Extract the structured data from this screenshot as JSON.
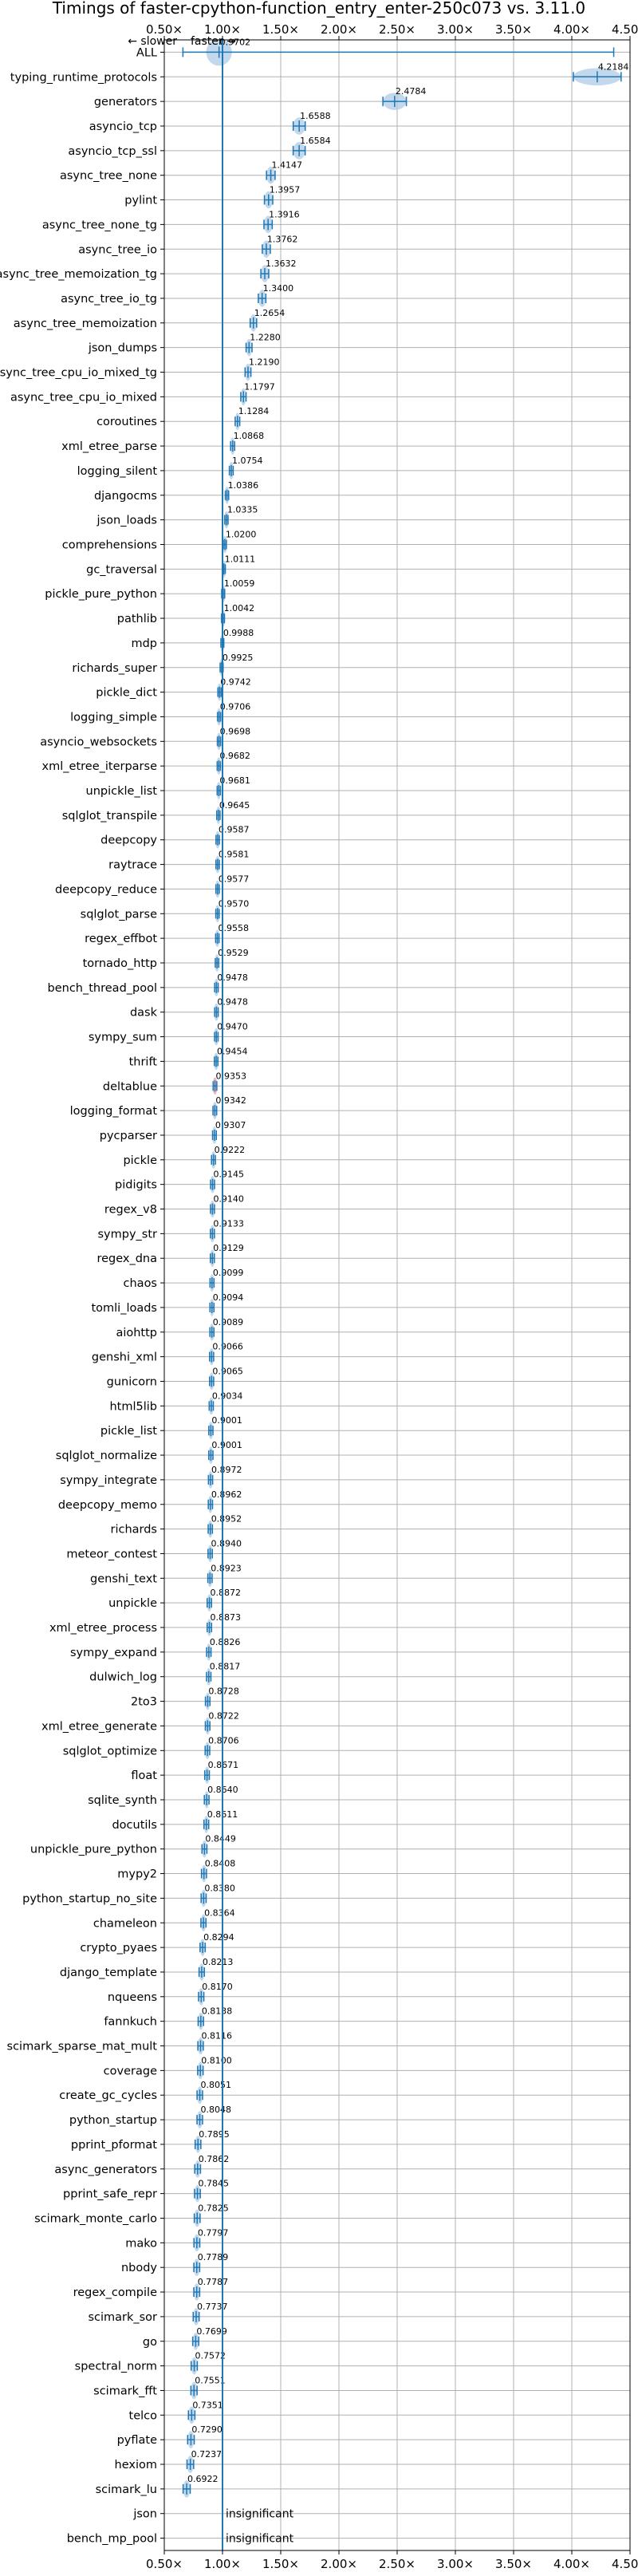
{
  "chart_data": {
    "type": "violin",
    "title": "Timings of faster-cpython-function_entry_enter-250c073 vs. 3.11.0",
    "top_labels": {
      "slower": "← slower",
      "faster": "faster →"
    },
    "xlim": [
      0.5,
      4.5
    ],
    "xticks": [
      0.5,
      1.0,
      1.5,
      2.0,
      2.5,
      3.0,
      3.5,
      4.0,
      4.5
    ],
    "xtick_labels": [
      "0.50×",
      "1.00×",
      "1.50×",
      "2.00×",
      "2.50×",
      "3.00×",
      "3.50×",
      "4.00×",
      "4.50×"
    ],
    "reference_line": 1.0,
    "grid": true,
    "colors": {
      "violin": "#aecbe6",
      "marker": "#1f77b4",
      "slower": "#e8a0a8",
      "ref": "#1f77b4",
      "grid": "#b0b0b0"
    },
    "benchmarks": [
      {
        "name": "ALL",
        "value": 0.9702,
        "label": "0.9702"
      },
      {
        "name": "typing_runtime_protocols",
        "value": 4.2184,
        "label": "4.2184"
      },
      {
        "name": "generators",
        "value": 2.4784,
        "label": "2.4784"
      },
      {
        "name": "asyncio_tcp",
        "value": 1.6588,
        "label": "1.6588"
      },
      {
        "name": "asyncio_tcp_ssl",
        "value": 1.6584,
        "label": "1.6584"
      },
      {
        "name": "async_tree_none",
        "value": 1.4147,
        "label": "1.4147"
      },
      {
        "name": "pylint",
        "value": 1.3957,
        "label": "1.3957"
      },
      {
        "name": "async_tree_none_tg",
        "value": 1.3916,
        "label": "1.3916"
      },
      {
        "name": "async_tree_io",
        "value": 1.3762,
        "label": "1.3762"
      },
      {
        "name": "async_tree_memoization_tg",
        "value": 1.3632,
        "label": "1.3632"
      },
      {
        "name": "async_tree_io_tg",
        "value": 1.34,
        "label": "1.3400"
      },
      {
        "name": "async_tree_memoization",
        "value": 1.2654,
        "label": "1.2654"
      },
      {
        "name": "json_dumps",
        "value": 1.228,
        "label": "1.2280"
      },
      {
        "name": "async_tree_cpu_io_mixed_tg",
        "value": 1.219,
        "label": "1.2190"
      },
      {
        "name": "async_tree_cpu_io_mixed",
        "value": 1.1797,
        "label": "1.1797"
      },
      {
        "name": "coroutines",
        "value": 1.1284,
        "label": "1.1284"
      },
      {
        "name": "xml_etree_parse",
        "value": 1.0868,
        "label": "1.0868"
      },
      {
        "name": "logging_silent",
        "value": 1.0754,
        "label": "1.0754"
      },
      {
        "name": "djangocms",
        "value": 1.0386,
        "label": "1.0386"
      },
      {
        "name": "json_loads",
        "value": 1.0335,
        "label": "1.0335"
      },
      {
        "name": "comprehensions",
        "value": 1.02,
        "label": "1.0200"
      },
      {
        "name": "gc_traversal",
        "value": 1.0111,
        "label": "1.0111"
      },
      {
        "name": "pickle_pure_python",
        "value": 1.0059,
        "label": "1.0059"
      },
      {
        "name": "pathlib",
        "value": 1.0042,
        "label": "1.0042"
      },
      {
        "name": "mdp",
        "value": 0.9988,
        "label": "0.9988"
      },
      {
        "name": "richards_super",
        "value": 0.9925,
        "label": "0.9925"
      },
      {
        "name": "pickle_dict",
        "value": 0.9742,
        "label": "0.9742"
      },
      {
        "name": "logging_simple",
        "value": 0.9706,
        "label": "0.9706"
      },
      {
        "name": "asyncio_websockets",
        "value": 0.9698,
        "label": "0.9698"
      },
      {
        "name": "xml_etree_iterparse",
        "value": 0.9682,
        "label": "0.9682"
      },
      {
        "name": "unpickle_list",
        "value": 0.9681,
        "label": "0.9681"
      },
      {
        "name": "sqlglot_transpile",
        "value": 0.9645,
        "label": "0.9645"
      },
      {
        "name": "deepcopy",
        "value": 0.9587,
        "label": "0.9587"
      },
      {
        "name": "raytrace",
        "value": 0.9581,
        "label": "0.9581"
      },
      {
        "name": "deepcopy_reduce",
        "value": 0.9577,
        "label": "0.9577"
      },
      {
        "name": "sqlglot_parse",
        "value": 0.957,
        "label": "0.9570"
      },
      {
        "name": "regex_effbot",
        "value": 0.9558,
        "label": "0.9558"
      },
      {
        "name": "tornado_http",
        "value": 0.9529,
        "label": "0.9529"
      },
      {
        "name": "bench_thread_pool",
        "value": 0.9478,
        "label": "0.9478"
      },
      {
        "name": "dask",
        "value": 0.9478,
        "label": "0.9478"
      },
      {
        "name": "sympy_sum",
        "value": 0.947,
        "label": "0.9470"
      },
      {
        "name": "thrift",
        "value": 0.9454,
        "label": "0.9454"
      },
      {
        "name": "deltablue",
        "value": 0.9353,
        "label": "0.9353"
      },
      {
        "name": "logging_format",
        "value": 0.9342,
        "label": "0.9342"
      },
      {
        "name": "pycparser",
        "value": 0.9307,
        "label": "0.9307"
      },
      {
        "name": "pickle",
        "value": 0.9222,
        "label": "0.9222"
      },
      {
        "name": "pidigits",
        "value": 0.9145,
        "label": "0.9145"
      },
      {
        "name": "regex_v8",
        "value": 0.914,
        "label": "0.9140"
      },
      {
        "name": "sympy_str",
        "value": 0.9133,
        "label": "0.9133"
      },
      {
        "name": "regex_dna",
        "value": 0.9129,
        "label": "0.9129"
      },
      {
        "name": "chaos",
        "value": 0.9099,
        "label": "0.9099"
      },
      {
        "name": "tomli_loads",
        "value": 0.9094,
        "label": "0.9094"
      },
      {
        "name": "aiohttp",
        "value": 0.9089,
        "label": "0.9089"
      },
      {
        "name": "genshi_xml",
        "value": 0.9066,
        "label": "0.9066"
      },
      {
        "name": "gunicorn",
        "value": 0.9065,
        "label": "0.9065"
      },
      {
        "name": "html5lib",
        "value": 0.9034,
        "label": "0.9034"
      },
      {
        "name": "pickle_list",
        "value": 0.9001,
        "label": "0.9001"
      },
      {
        "name": "sqlglot_normalize",
        "value": 0.9001,
        "label": "0.9001"
      },
      {
        "name": "sympy_integrate",
        "value": 0.8972,
        "label": "0.8972"
      },
      {
        "name": "deepcopy_memo",
        "value": 0.8962,
        "label": "0.8962"
      },
      {
        "name": "richards",
        "value": 0.8952,
        "label": "0.8952"
      },
      {
        "name": "meteor_contest",
        "value": 0.894,
        "label": "0.8940"
      },
      {
        "name": "genshi_text",
        "value": 0.8923,
        "label": "0.8923"
      },
      {
        "name": "unpickle",
        "value": 0.8872,
        "label": "0.8872"
      },
      {
        "name": "xml_etree_process",
        "value": 0.8873,
        "label": "0.8873"
      },
      {
        "name": "sympy_expand",
        "value": 0.8826,
        "label": "0.8826"
      },
      {
        "name": "dulwich_log",
        "value": 0.8817,
        "label": "0.8817"
      },
      {
        "name": "2to3",
        "value": 0.8728,
        "label": "0.8728"
      },
      {
        "name": "xml_etree_generate",
        "value": 0.8722,
        "label": "0.8722"
      },
      {
        "name": "sqlglot_optimize",
        "value": 0.8706,
        "label": "0.8706"
      },
      {
        "name": "float",
        "value": 0.8671,
        "label": "0.8671"
      },
      {
        "name": "sqlite_synth",
        "value": 0.864,
        "label": "0.8640"
      },
      {
        "name": "docutils",
        "value": 0.8611,
        "label": "0.8611"
      },
      {
        "name": "unpickle_pure_python",
        "value": 0.8449,
        "label": "0.8449"
      },
      {
        "name": "mypy2",
        "value": 0.8408,
        "label": "0.8408"
      },
      {
        "name": "python_startup_no_site",
        "value": 0.838,
        "label": "0.8380"
      },
      {
        "name": "chameleon",
        "value": 0.8364,
        "label": "0.8364"
      },
      {
        "name": "crypto_pyaes",
        "value": 0.8294,
        "label": "0.8294"
      },
      {
        "name": "django_template",
        "value": 0.8213,
        "label": "0.8213"
      },
      {
        "name": "nqueens",
        "value": 0.817,
        "label": "0.8170"
      },
      {
        "name": "fannkuch",
        "value": 0.8138,
        "label": "0.8138"
      },
      {
        "name": "scimark_sparse_mat_mult",
        "value": 0.8116,
        "label": "0.8116"
      },
      {
        "name": "coverage",
        "value": 0.81,
        "label": "0.8100"
      },
      {
        "name": "create_gc_cycles",
        "value": 0.8051,
        "label": "0.8051"
      },
      {
        "name": "python_startup",
        "value": 0.8048,
        "label": "0.8048"
      },
      {
        "name": "pprint_pformat",
        "value": 0.7895,
        "label": "0.7895"
      },
      {
        "name": "async_generators",
        "value": 0.7862,
        "label": "0.7862"
      },
      {
        "name": "pprint_safe_repr",
        "value": 0.7845,
        "label": "0.7845"
      },
      {
        "name": "scimark_monte_carlo",
        "value": 0.7825,
        "label": "0.7825"
      },
      {
        "name": "mako",
        "value": 0.7797,
        "label": "0.7797"
      },
      {
        "name": "nbody",
        "value": 0.7789,
        "label": "0.7789"
      },
      {
        "name": "regex_compile",
        "value": 0.7787,
        "label": "0.7787"
      },
      {
        "name": "scimark_sor",
        "value": 0.7737,
        "label": "0.7737"
      },
      {
        "name": "go",
        "value": 0.7699,
        "label": "0.7699"
      },
      {
        "name": "spectral_norm",
        "value": 0.7572,
        "label": "0.7572"
      },
      {
        "name": "scimark_fft",
        "value": 0.7551,
        "label": "0.7551"
      },
      {
        "name": "telco",
        "value": 0.7351,
        "label": "0.7351"
      },
      {
        "name": "pyflate",
        "value": 0.729,
        "label": "0.7290"
      },
      {
        "name": "hexiom",
        "value": 0.7237,
        "label": "0.7237"
      },
      {
        "name": "scimark_lu",
        "value": 0.6922,
        "label": "0.6922"
      },
      {
        "name": "json",
        "value": null,
        "label": "insignificant"
      },
      {
        "name": "bench_mp_pool",
        "value": null,
        "label": "insignificant"
      }
    ]
  }
}
